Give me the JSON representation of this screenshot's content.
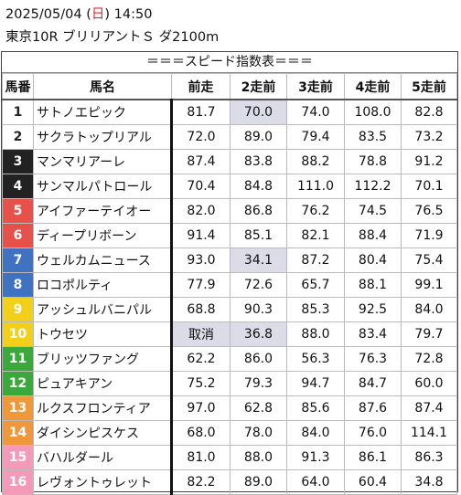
{
  "header": {
    "date": "2025/05/04",
    "weekday_open": "(",
    "weekday": "日",
    "weekday_close": ")",
    "time": "14:50",
    "race": "東京10R ブリリアントＳ ダ2100m"
  },
  "caption": "＝＝＝スピード指数表＝＝＝",
  "columns": [
    "馬番",
    "馬名",
    "前走",
    "2走前",
    "3走前",
    "4走前",
    "5走前"
  ],
  "colors": {
    "frame1": "#ffffff",
    "frame2": "#ffffff",
    "frame3": "#222222",
    "frame4": "#222222",
    "frame5": "#e8504a",
    "frame6": "#e8504a",
    "frame7": "#3f72c0",
    "frame8": "#3f72c0",
    "frame9": "#f2d01a",
    "frame10": "#f2d01a",
    "frame11": "#3aa83a",
    "frame12": "#3aa83a",
    "frame13": "#f0973a",
    "frame14": "#f0973a",
    "frame15": "#f49ab8",
    "frame16": "#f49ab8",
    "highlight": "#dcdce8"
  },
  "rows": [
    {
      "no": "1",
      "name": "サトノエピック",
      "v": [
        "81.7",
        "70.0",
        "74.0",
        "108.0",
        "82.8"
      ],
      "hl": [
        1
      ]
    },
    {
      "no": "2",
      "name": "サクラトップリアル",
      "v": [
        "72.0",
        "89.0",
        "79.4",
        "83.5",
        "73.2"
      ],
      "hl": []
    },
    {
      "no": "3",
      "name": "マンマリアーレ",
      "v": [
        "87.4",
        "83.8",
        "88.2",
        "78.8",
        "91.2"
      ],
      "hl": []
    },
    {
      "no": "4",
      "name": "サンマルパトロール",
      "v": [
        "70.4",
        "84.8",
        "111.0",
        "112.2",
        "70.1"
      ],
      "hl": []
    },
    {
      "no": "5",
      "name": "アイファーテイオー",
      "v": [
        "82.0",
        "86.8",
        "76.2",
        "74.5",
        "76.5"
      ],
      "hl": []
    },
    {
      "no": "6",
      "name": "ディープリボーン",
      "v": [
        "91.4",
        "85.1",
        "82.1",
        "88.4",
        "71.9"
      ],
      "hl": []
    },
    {
      "no": "7",
      "name": "ウェルカムニュース",
      "v": [
        "93.0",
        "34.1",
        "87.2",
        "80.4",
        "75.4"
      ],
      "hl": [
        1
      ]
    },
    {
      "no": "8",
      "name": "ロコポルティ",
      "v": [
        "77.9",
        "72.6",
        "65.7",
        "88.1",
        "99.1"
      ],
      "hl": []
    },
    {
      "no": "9",
      "name": "アッシュルバニパル",
      "v": [
        "68.8",
        "90.3",
        "85.3",
        "92.5",
        "84.0"
      ],
      "hl": []
    },
    {
      "no": "10",
      "name": "トウセツ",
      "v": [
        "取消",
        "36.8",
        "88.0",
        "83.4",
        "79.7"
      ],
      "hl": [
        0,
        1
      ]
    },
    {
      "no": "11",
      "name": "ブリッツファング",
      "v": [
        "62.2",
        "86.0",
        "56.3",
        "76.3",
        "72.8"
      ],
      "hl": []
    },
    {
      "no": "12",
      "name": "ピュアキアン",
      "v": [
        "75.2",
        "79.3",
        "94.7",
        "84.7",
        "60.0"
      ],
      "hl": []
    },
    {
      "no": "13",
      "name": "ルクスフロンティア",
      "v": [
        "97.0",
        "62.8",
        "85.6",
        "87.6",
        "87.4"
      ],
      "hl": []
    },
    {
      "no": "14",
      "name": "ダイシンピスケス",
      "v": [
        "68.0",
        "78.0",
        "84.0",
        "76.0",
        "114.1"
      ],
      "hl": []
    },
    {
      "no": "15",
      "name": "バハルダール",
      "v": [
        "81.0",
        "88.0",
        "91.3",
        "86.1",
        "86.3"
      ],
      "hl": []
    },
    {
      "no": "16",
      "name": "レヴォントゥレット",
      "v": [
        "82.2",
        "89.0",
        "64.0",
        "60.4",
        "34.8"
      ],
      "hl": []
    }
  ]
}
